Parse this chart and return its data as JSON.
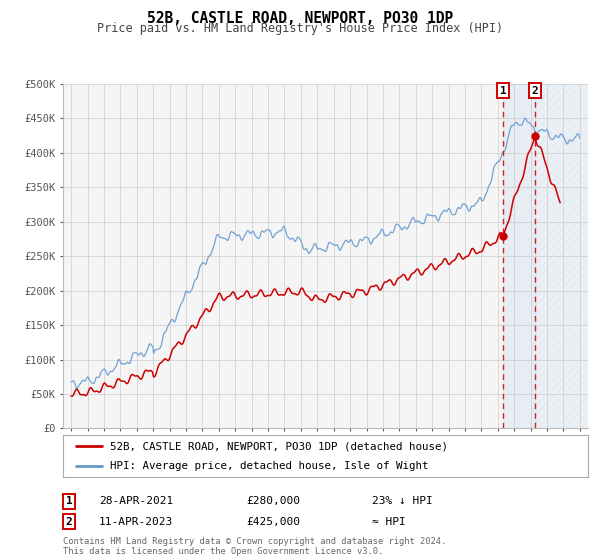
{
  "title": "52B, CASTLE ROAD, NEWPORT, PO30 1DP",
  "subtitle": "Price paid vs. HM Land Registry's House Price Index (HPI)",
  "legend_entry1": "52B, CASTLE ROAD, NEWPORT, PO30 1DP (detached house)",
  "legend_entry2": "HPI: Average price, detached house, Isle of Wight",
  "footnote1": "Contains HM Land Registry data © Crown copyright and database right 2024.",
  "footnote2": "This data is licensed under the Open Government Licence v3.0.",
  "transaction1_date": "28-APR-2021",
  "transaction1_price": "£280,000",
  "transaction1_note": "23% ↓ HPI",
  "transaction2_date": "11-APR-2023",
  "transaction2_price": "£425,000",
  "transaction2_note": "≈ HPI",
  "red_color": "#cc0000",
  "blue_color": "#6699cc",
  "marker1_year": 2021.32,
  "marker1_value": 280000,
  "marker2_year": 2023.28,
  "marker2_value": 425000,
  "vline1_year": 2021.32,
  "vline2_year": 2023.28,
  "ylim": [
    0,
    500000
  ],
  "xlim_start": 1994.5,
  "xlim_end": 2026.5,
  "yticks": [
    0,
    50000,
    100000,
    150000,
    200000,
    250000,
    300000,
    350000,
    400000,
    450000,
    500000
  ],
  "ytick_labels": [
    "£0",
    "£50K",
    "£100K",
    "£150K",
    "£200K",
    "£250K",
    "£300K",
    "£350K",
    "£400K",
    "£450K",
    "£500K"
  ],
  "xticks": [
    1995,
    1996,
    1997,
    1998,
    1999,
    2000,
    2001,
    2002,
    2003,
    2004,
    2005,
    2006,
    2007,
    2008,
    2009,
    2010,
    2011,
    2012,
    2013,
    2014,
    2015,
    2016,
    2017,
    2018,
    2019,
    2020,
    2021,
    2022,
    2023,
    2024,
    2025,
    2026
  ],
  "background_color": "#f5f5f5",
  "grid_color": "#cccccc",
  "shade_start": 2021.32,
  "shade_end": 2023.28,
  "shade_color": "#aaccee"
}
